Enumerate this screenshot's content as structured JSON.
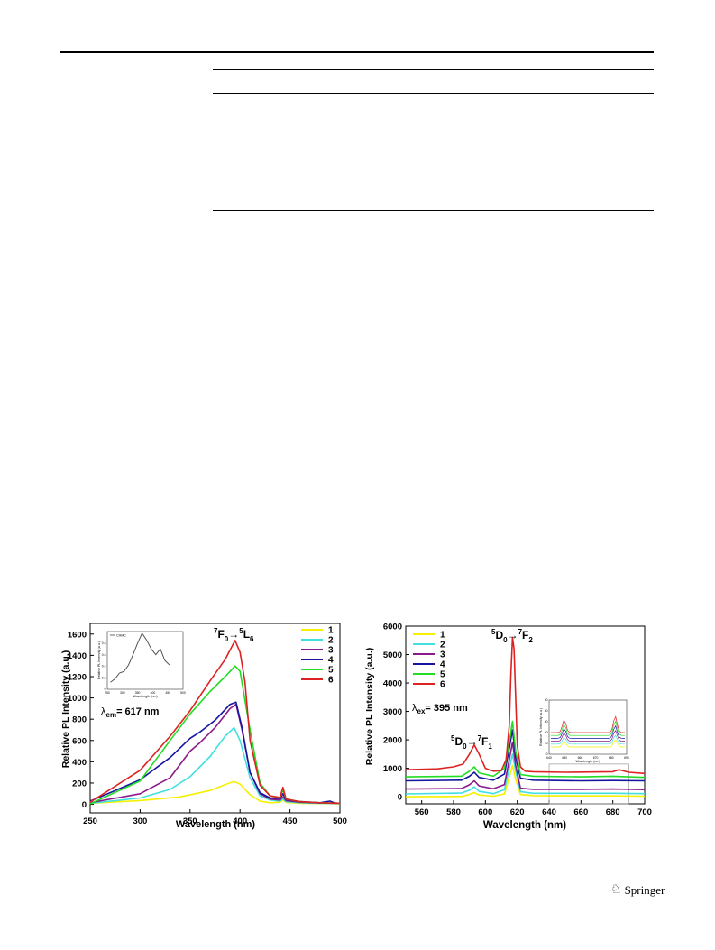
{
  "footer": {
    "brand_icon": "springer-horse-icon",
    "brand": "Springer"
  },
  "chart_data": [
    {
      "type": "line",
      "title": "",
      "xlabel": "Wavelength (nm)",
      "ylabel": "Relative PL Intensity (a.u.)",
      "xlim": [
        250,
        500
      ],
      "ylim": [
        -80,
        1700
      ],
      "xticks": [
        250,
        300,
        350,
        400,
        450,
        500
      ],
      "yticks": [
        0,
        200,
        400,
        600,
        800,
        1000,
        1200,
        1400,
        1600
      ],
      "grid": false,
      "legend_position": "top-right",
      "annotations": {
        "transition": {
          "pre": "7",
          "a": "F",
          "asub": "0",
          "arrow": "→",
          "post": "5",
          "b": "L",
          "bsub": "6"
        },
        "lambda": {
          "sym": "λ",
          "sub": "em",
          "text": "= 617 nm"
        }
      },
      "series": [
        {
          "name": "1",
          "color": "#f5f000",
          "x": [
            250,
            300,
            340,
            370,
            385,
            394,
            400,
            410,
            420,
            430,
            440,
            443,
            446,
            460,
            480,
            500
          ],
          "y": [
            10,
            35,
            70,
            130,
            185,
            215,
            190,
            90,
            30,
            15,
            20,
            40,
            18,
            10,
            8,
            5
          ]
        },
        {
          "name": "2",
          "color": "#40e0e0",
          "x": [
            250,
            300,
            330,
            350,
            370,
            385,
            394,
            400,
            410,
            420,
            430,
            440,
            443,
            446,
            460,
            480,
            500
          ],
          "y": [
            10,
            60,
            140,
            260,
            450,
            640,
            720,
            600,
            250,
            80,
            40,
            30,
            50,
            25,
            15,
            10,
            8
          ]
        },
        {
          "name": "3",
          "color": "#8b1a8b",
          "x": [
            250,
            300,
            330,
            350,
            360,
            375,
            390,
            396,
            402,
            410,
            420,
            430,
            440,
            443,
            446,
            460,
            480,
            500
          ],
          "y": [
            15,
            100,
            250,
            500,
            580,
            720,
            900,
            940,
            700,
            300,
            100,
            50,
            40,
            70,
            35,
            20,
            12,
            10
          ]
        },
        {
          "name": "4",
          "color": "#1515a0",
          "x": [
            250,
            300,
            330,
            350,
            360,
            375,
            390,
            396,
            402,
            410,
            420,
            430,
            440,
            443,
            446,
            460,
            480,
            490,
            495,
            500
          ],
          "y": [
            30,
            230,
            440,
            620,
            680,
            790,
            940,
            960,
            720,
            300,
            110,
            60,
            55,
            100,
            45,
            25,
            15,
            30,
            12,
            10
          ]
        },
        {
          "name": "5",
          "color": "#22dd22",
          "x": [
            250,
            300,
            330,
            350,
            370,
            385,
            395,
            400,
            410,
            420,
            430,
            440,
            443,
            446,
            460,
            480,
            500
          ],
          "y": [
            5,
            220,
            600,
            850,
            1060,
            1200,
            1300,
            1250,
            700,
            200,
            80,
            60,
            140,
            50,
            25,
            15,
            10
          ]
        },
        {
          "name": "6",
          "color": "#dd2222",
          "x": [
            250,
            300,
            330,
            350,
            370,
            385,
            395,
            400,
            405,
            410,
            420,
            430,
            440,
            443,
            446,
            460,
            480,
            500
          ],
          "y": [
            20,
            320,
            640,
            880,
            1160,
            1360,
            1540,
            1430,
            1150,
            600,
            180,
            80,
            65,
            160,
            50,
            25,
            15,
            10
          ]
        }
      ],
      "inset": {
        "legend": "CHMC",
        "xlabel": "Wavelength (nm)",
        "ylabel": "Relative PL Intensity (a.u.)",
        "xlim": [
          250,
          500
        ],
        "ylim": [
          0,
          1
        ],
        "xticks": [
          250,
          300,
          350,
          400,
          450,
          500
        ],
        "yticks": [
          0.0,
          0.2,
          0.4,
          0.6,
          0.8,
          1.0
        ],
        "series": [
          {
            "name": "CHMC",
            "color": "#444444",
            "x": [
              260,
              275,
              290,
              305,
              320,
              335,
              350,
              365,
              380,
              395,
              410,
              425,
              440,
              455
            ],
            "y": [
              0.12,
              0.18,
              0.28,
              0.31,
              0.42,
              0.6,
              0.8,
              0.97,
              0.85,
              0.7,
              0.6,
              0.7,
              0.5,
              0.42
            ]
          }
        ]
      }
    },
    {
      "type": "line",
      "title": "",
      "xlabel": "Wavelength (nm)",
      "ylabel": "Relative PL Intensity (a.u.)",
      "xlim": [
        550,
        700
      ],
      "ylim": [
        -250,
        6000
      ],
      "xticks": [
        560,
        580,
        600,
        620,
        640,
        660,
        680,
        700
      ],
      "yticks": [
        0,
        1000,
        2000,
        3000,
        4000,
        5000,
        6000
      ],
      "grid": false,
      "legend_position": "top-left",
      "annotations": {
        "peak_high": {
          "pre": "5",
          "a": "D",
          "asub": "0",
          "arrow": "→",
          "post": "7",
          "b": "F",
          "bsub": "2"
        },
        "peak_low": {
          "pre": "5",
          "a": "D",
          "asub": "0",
          "arrow": "→",
          "post": "7",
          "b": "F",
          "bsub": "1"
        },
        "lambda": {
          "sym": "λ",
          "sub": "ex",
          "text": "= 395 nm"
        }
      },
      "series": [
        {
          "name": "1",
          "color": "#f5f000",
          "x": [
            550,
            585,
            590,
            593,
            596,
            605,
            612,
            615,
            617,
            619,
            622,
            630,
            660,
            680,
            700
          ],
          "y": [
            0,
            10,
            80,
            150,
            60,
            20,
            100,
            700,
            1100,
            600,
            80,
            40,
            30,
            30,
            20
          ]
        },
        {
          "name": "2",
          "color": "#40e0e0",
          "x": [
            550,
            585,
            590,
            593,
            596,
            605,
            612,
            615,
            617,
            619,
            622,
            630,
            660,
            680,
            700
          ],
          "y": [
            100,
            130,
            230,
            350,
            190,
            110,
            250,
            1000,
            1500,
            900,
            180,
            120,
            120,
            120,
            110
          ]
        },
        {
          "name": "3",
          "color": "#8b1a8b",
          "x": [
            550,
            585,
            590,
            593,
            596,
            605,
            612,
            615,
            617,
            619,
            622,
            630,
            660,
            680,
            700
          ],
          "y": [
            270,
            290,
            420,
            560,
            380,
            280,
            430,
            1300,
            1920,
            1100,
            300,
            260,
            260,
            270,
            250
          ]
        },
        {
          "name": "4",
          "color": "#1515a0",
          "x": [
            550,
            585,
            590,
            593,
            596,
            605,
            612,
            615,
            617,
            619,
            622,
            630,
            660,
            680,
            700
          ],
          "y": [
            560,
            580,
            720,
            860,
            680,
            580,
            800,
            1700,
            2350,
            1400,
            650,
            580,
            560,
            570,
            560
          ]
        },
        {
          "name": "5",
          "color": "#22dd22",
          "x": [
            550,
            585,
            590,
            593,
            596,
            605,
            612,
            615,
            617,
            619,
            622,
            630,
            660,
            680,
            700
          ],
          "y": [
            700,
            720,
            900,
            1050,
            840,
            720,
            1000,
            1900,
            2650,
            1600,
            780,
            720,
            700,
            720,
            680
          ]
        },
        {
          "name": "6",
          "color": "#dd2222",
          "x": [
            550,
            570,
            580,
            586,
            590,
            593,
            596,
            600,
            605,
            610,
            613,
            615,
            616,
            617,
            618,
            619,
            620,
            622,
            625,
            630,
            650,
            680,
            684,
            690,
            700
          ],
          "y": [
            950,
            980,
            1050,
            1150,
            1500,
            1820,
            1500,
            1000,
            900,
            920,
            1300,
            2500,
            4300,
            5600,
            5200,
            3500,
            1800,
            1050,
            900,
            880,
            860,
            880,
            950,
            860,
            820
          ]
        }
      ],
      "inset": {
        "xlabel": "Wavelength (nm)",
        "ylabel": "Relative PL Intensity (a.u.)",
        "xlim": [
          640,
          690
        ],
        "ylim": [
          0,
          50
        ],
        "xticks": [
          640,
          650,
          660,
          670,
          680,
          690
        ],
        "yticks": [
          0,
          10,
          20,
          30,
          40,
          50
        ],
        "series": []
      }
    }
  ]
}
